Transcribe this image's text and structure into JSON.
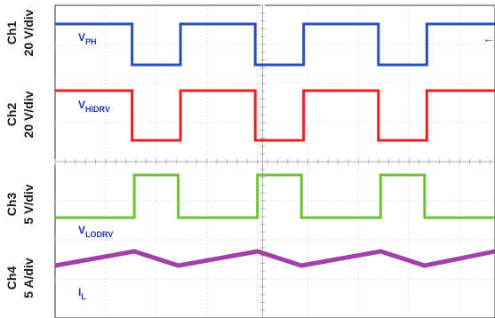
{
  "chart_data": {
    "type": "line",
    "title": "",
    "channels": [
      {
        "id": "ch1",
        "name_lines": [
          "Ch1",
          "20 V/div"
        ],
        "signal": "V",
        "sub": "PH",
        "color": "#2a4ec0",
        "low": 0,
        "high": 1,
        "x": [
          0,
          17.5,
          17.5,
          28.5,
          28.5,
          45.5,
          45.5,
          56.5,
          56.5,
          73.5,
          73.5,
          84.5,
          84.5,
          100
        ],
        "y": [
          1,
          1,
          0,
          0,
          1,
          1,
          0,
          0,
          1,
          1,
          0,
          0,
          1,
          1
        ]
      },
      {
        "id": "ch2",
        "name_lines": [
          "Ch2",
          "20 V/div"
        ],
        "signal": "V",
        "sub": "HIDRV",
        "color": "#e8201f",
        "low": 0,
        "high": 1,
        "x": [
          0,
          17.5,
          17.5,
          28.5,
          28.5,
          45.5,
          45.5,
          56.5,
          56.5,
          73.5,
          73.5,
          84.5,
          84.5,
          100
        ],
        "y": [
          1,
          1,
          0,
          0,
          1,
          1,
          0,
          0,
          1,
          1,
          0,
          0,
          1,
          1
        ]
      },
      {
        "id": "ch3",
        "name_lines": [
          "Ch3",
          "5 V/div"
        ],
        "signal": "V",
        "sub": "LODRV",
        "color": "#6fc038",
        "low": 0,
        "high": 1,
        "x": [
          0,
          18,
          18,
          28,
          28,
          46,
          46,
          56,
          56,
          74,
          74,
          84,
          84,
          100
        ],
        "y": [
          0,
          0,
          1,
          1,
          0,
          0,
          1,
          1,
          0,
          0,
          1,
          1,
          0,
          0
        ]
      },
      {
        "id": "ch4",
        "name_lines": [
          "Ch4",
          "5 A/div"
        ],
        "signal": "I",
        "sub": "L",
        "color": "#a23fa8",
        "low": 0,
        "high": 1,
        "x": [
          0,
          18,
          28,
          46,
          56,
          74,
          84,
          100
        ],
        "y": [
          0,
          1,
          0,
          1,
          0,
          1,
          0,
          1
        ]
      }
    ],
    "grid": true,
    "divisions": {
      "x": 10,
      "y": 8
    }
  },
  "marker": {
    "glyph": "←",
    "color": "#2a4ec0"
  }
}
